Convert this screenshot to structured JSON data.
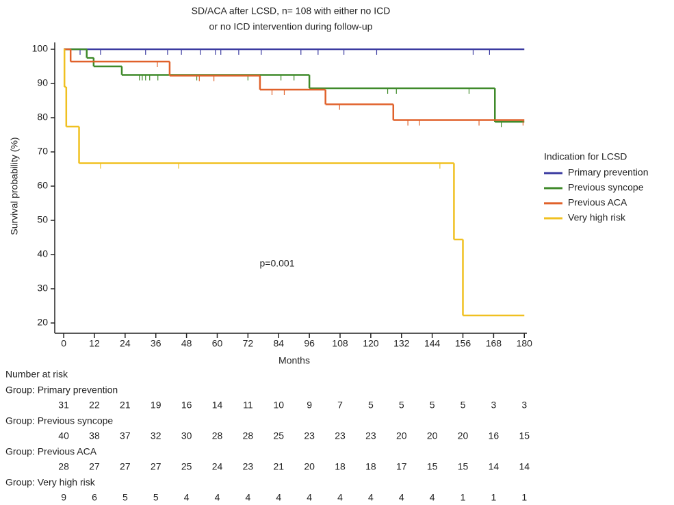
{
  "chart_data": {
    "type": "step",
    "title": [
      "SD/ACA after LCSD, n= 108 with either no ICD",
      "or no ICD intervention during follow-up"
    ],
    "x_label": "Months",
    "y_label": "Survival probability (%)",
    "xlim": [
      -3.5,
      181
    ],
    "ylim": [
      17,
      102
    ],
    "xticks": [
      0,
      12,
      24,
      36,
      48,
      60,
      72,
      84,
      96,
      108,
      120,
      132,
      144,
      156,
      168,
      180
    ],
    "yticks": [
      20,
      30,
      40,
      50,
      60,
      70,
      80,
      90,
      100
    ],
    "legend_title": "Indication for LCSD",
    "legend_position": "right",
    "annotation": "p=0.001",
    "series": [
      {
        "name": "Primary prevention",
        "color": "#3a3aa0",
        "x": [
          0,
          180
        ],
        "values": [
          100,
          100
        ],
        "censored_x": [
          6.4,
          14.4,
          32,
          40.6,
          46,
          53.4,
          59.3,
          61.4,
          68.4,
          77.2,
          92.7,
          99.4,
          109.5,
          122.3,
          160,
          166.4
        ]
      },
      {
        "name": "Previous syncope",
        "color": "#3f8a2a",
        "x": [
          0,
          9,
          11.7,
          22.7,
          96,
          168.5,
          180
        ],
        "values": [
          100,
          97.5,
          95,
          92.5,
          88.6,
          78.8,
          78.8
        ],
        "censored_x": [
          29.6,
          30.7,
          32,
          33.6,
          36.8,
          52,
          72,
          84.9,
          90,
          126.6,
          130,
          158.4,
          171
        ]
      },
      {
        "name": "Previous ACA",
        "color": "#e0612a",
        "x": [
          0,
          2.7,
          41.4,
          76.7,
          102.3,
          128.8,
          180
        ],
        "values": [
          100,
          96.4,
          92.3,
          88.2,
          83.9,
          79.3,
          79.3
        ],
        "censored_x": [
          36.6,
          53,
          58.7,
          81.4,
          86.2,
          107.8,
          134.5,
          139,
          162.3,
          179.5
        ]
      },
      {
        "name": "Very high risk",
        "color": "#f0c020",
        "x": [
          0,
          0.3,
          1,
          6,
          152.5,
          156,
          180
        ],
        "values": [
          100,
          89,
          77.4,
          66.7,
          44.4,
          22.2,
          22.2
        ],
        "censored_x": [
          14.4,
          44.9,
          147
        ]
      }
    ],
    "risk_table": {
      "title": "Number at risk",
      "rows": [
        {
          "label": "Group: Primary prevention",
          "values": [
            31,
            22,
            21,
            19,
            16,
            14,
            11,
            10,
            9,
            7,
            5,
            5,
            5,
            5,
            3,
            3
          ]
        },
        {
          "label": "Group: Previous syncope",
          "values": [
            40,
            38,
            37,
            32,
            30,
            28,
            28,
            25,
            23,
            23,
            23,
            20,
            20,
            20,
            16,
            15
          ]
        },
        {
          "label": "Group: Previous ACA",
          "values": [
            28,
            27,
            27,
            27,
            25,
            24,
            23,
            21,
            20,
            18,
            18,
            17,
            15,
            15,
            14,
            14
          ]
        },
        {
          "label": "Group: Very high risk",
          "values": [
            9,
            6,
            5,
            5,
            4,
            4,
            4,
            4,
            4,
            4,
            4,
            4,
            4,
            1,
            1,
            1
          ]
        }
      ]
    }
  }
}
